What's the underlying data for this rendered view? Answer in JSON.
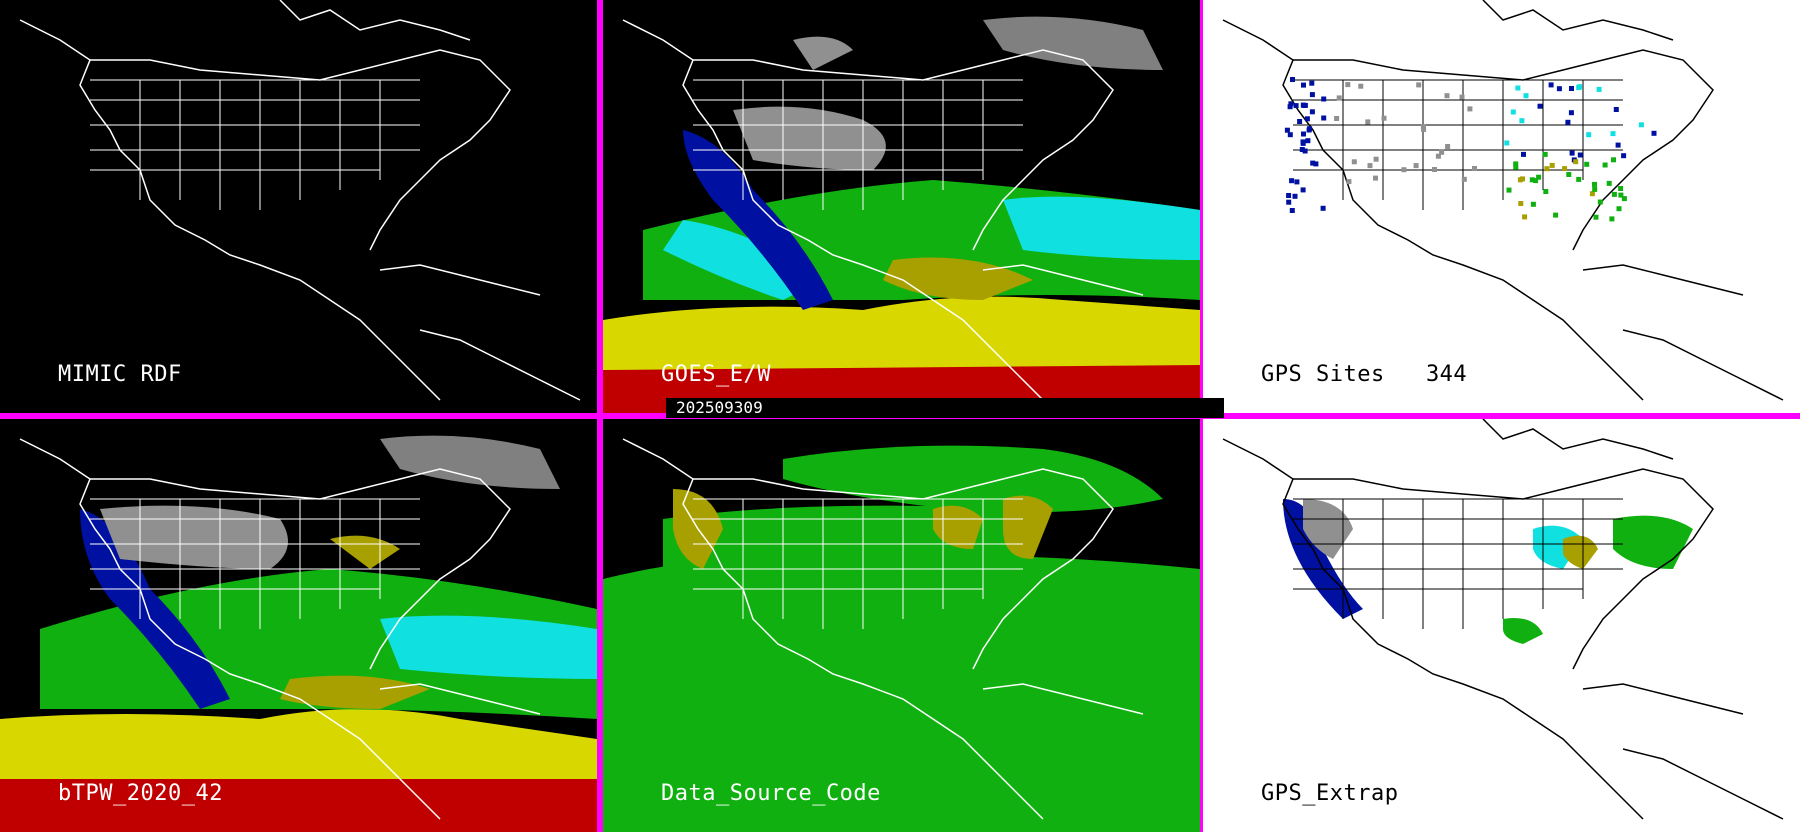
{
  "panels": [
    {
      "id": "p1",
      "label": "MIMIC RDF",
      "theme": "dark"
    },
    {
      "id": "p2",
      "label": "GOES_E/W",
      "theme": "dark"
    },
    {
      "id": "p3",
      "label": "GPS Sites   344",
      "theme": "light"
    },
    {
      "id": "p4",
      "label": "bTPW_2020_42",
      "theme": "dark"
    },
    {
      "id": "p5",
      "label": "Data_Source_Code",
      "theme": "dark"
    },
    {
      "id": "p6",
      "label": "GPS_Extrap",
      "theme": "light"
    }
  ],
  "timestamp": "202509309",
  "colors": {
    "divider": "#ff00ff",
    "coast_dark": "#ffffff",
    "coast_light": "#000000",
    "red": "#c00000",
    "yellow": "#d8d800",
    "olive": "#a8a000",
    "green": "#10b010",
    "cyan": "#10e0e0",
    "blue": "#0010a0",
    "gray": "#909090"
  }
}
